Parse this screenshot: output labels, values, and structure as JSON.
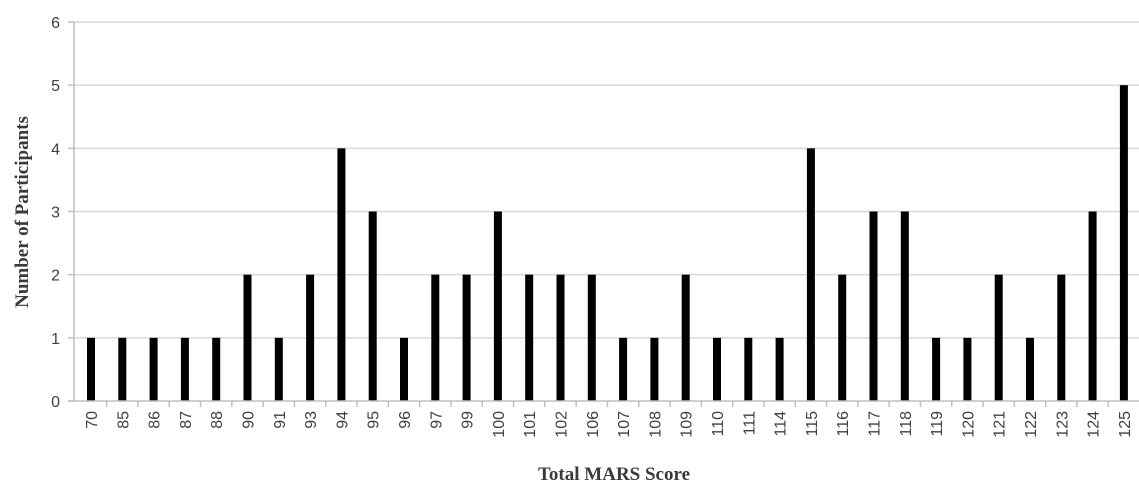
{
  "chart_data": {
    "type": "bar",
    "title": "",
    "xlabel": "Total MARS Score",
    "ylabel": "Number of Participants",
    "ylim": [
      0,
      6
    ],
    "yticks": [
      0,
      1,
      2,
      3,
      4,
      5,
      6
    ],
    "grid": true,
    "legend": "none",
    "bar_color": "#000000",
    "grid_color": "#d9d9d9",
    "categories": [
      "70",
      "85",
      "86",
      "87",
      "88",
      "90",
      "91",
      "93",
      "94",
      "95",
      "96",
      "97",
      "99",
      "100",
      "101",
      "102",
      "106",
      "107",
      "108",
      "109",
      "110",
      "111",
      "114",
      "115",
      "116",
      "117",
      "118",
      "119",
      "120",
      "121",
      "122",
      "123",
      "124",
      "125"
    ],
    "values": [
      1,
      1,
      1,
      1,
      1,
      2,
      1,
      2,
      4,
      3,
      1,
      2,
      2,
      3,
      2,
      2,
      2,
      1,
      1,
      2,
      1,
      1,
      1,
      4,
      2,
      3,
      3,
      1,
      1,
      2,
      1,
      2,
      3,
      5
    ]
  }
}
